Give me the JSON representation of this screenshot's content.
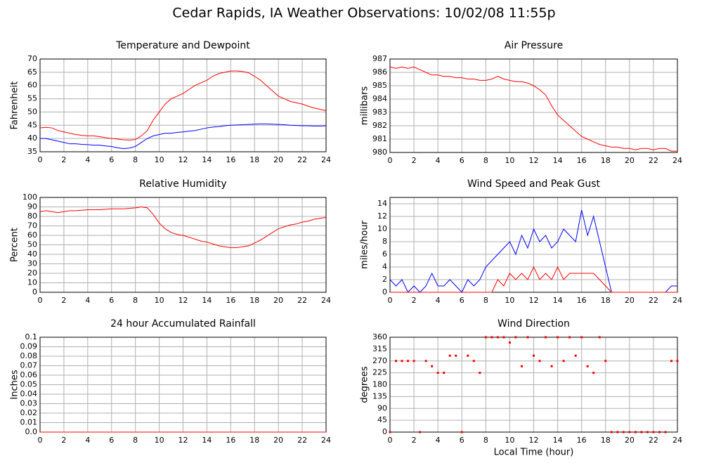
{
  "title": "Cedar Rapids, IA Weather Observations: 10/02/08 11:55p",
  "chart_data": [
    {
      "type": "line",
      "title": "Temperature and Dewpoint",
      "ylabel": "Fahrenheit",
      "x": [
        0,
        0.5,
        1,
        1.5,
        2,
        2.5,
        3,
        3.5,
        4,
        4.5,
        5,
        5.5,
        6,
        6.5,
        7,
        7.5,
        8,
        8.5,
        9,
        9.5,
        10,
        10.5,
        11,
        11.5,
        12,
        12.5,
        13,
        13.5,
        14,
        14.5,
        15,
        15.5,
        16,
        16.5,
        17,
        17.5,
        18,
        18.5,
        19,
        19.5,
        20,
        20.5,
        21,
        21.5,
        22,
        22.5,
        23,
        23.5,
        24
      ],
      "series": [
        {
          "color": "#ff0000",
          "values": [
            44,
            44.2,
            44,
            43,
            42.5,
            42,
            41.5,
            41.2,
            41,
            41,
            40.7,
            40.3,
            40,
            39.8,
            39.5,
            39.4,
            39.6,
            41,
            43,
            47,
            50,
            53,
            55,
            56,
            57,
            58.5,
            60,
            61,
            62,
            63.5,
            64.5,
            65,
            65.5,
            65.5,
            65.3,
            64.8,
            63.5,
            62,
            60,
            58,
            56,
            55,
            54,
            53.5,
            53,
            52.2,
            51.5,
            51,
            50.5
          ]
        },
        {
          "color": "#0000ff",
          "values": [
            40,
            40,
            39.5,
            39,
            38.5,
            38,
            38,
            37.8,
            37.7,
            37.5,
            37.5,
            37.2,
            37,
            36.5,
            36.2,
            36.4,
            37,
            38.5,
            40,
            41,
            41.5,
            42,
            42,
            42.3,
            42.5,
            42.8,
            43,
            43.5,
            44,
            44.3,
            44.5,
            44.8,
            45,
            45.1,
            45.2,
            45.3,
            45.4,
            45.5,
            45.5,
            45.4,
            45.3,
            45.2,
            45,
            44.9,
            44.8,
            44.8,
            44.7,
            44.7,
            44.8
          ]
        }
      ],
      "xlim": [
        0,
        24
      ],
      "xticks": [
        0,
        2,
        4,
        6,
        8,
        10,
        12,
        14,
        16,
        18,
        20,
        22,
        24
      ],
      "ylim": [
        35,
        70
      ],
      "yticks": [
        35,
        40,
        45,
        50,
        55,
        60,
        65,
        70
      ],
      "grid": true
    },
    {
      "type": "line",
      "title": "Air Pressure",
      "ylabel": "millibars",
      "x": [
        0,
        0.5,
        1,
        1.5,
        2,
        2.5,
        3,
        3.5,
        4,
        4.5,
        5,
        5.5,
        6,
        6.5,
        7,
        7.5,
        8,
        8.5,
        9,
        9.5,
        10,
        10.5,
        11,
        11.5,
        12,
        12.5,
        13,
        13.5,
        14,
        14.5,
        15,
        15.5,
        16,
        16.5,
        17,
        17.5,
        18,
        18.5,
        19,
        19.5,
        20,
        20.5,
        21,
        21.5,
        22,
        22.5,
        23,
        23.5,
        24
      ],
      "series": [
        {
          "color": "#ff0000",
          "values": [
            986.4,
            986.3,
            986.4,
            986.3,
            986.4,
            986.2,
            986.0,
            985.8,
            985.8,
            985.7,
            985.7,
            985.6,
            985.6,
            985.5,
            985.5,
            985.4,
            985.4,
            985.5,
            985.7,
            985.5,
            985.4,
            985.3,
            985.3,
            985.2,
            985.0,
            984.7,
            984.3,
            983.5,
            982.8,
            982.4,
            982.0,
            981.6,
            981.2,
            981.0,
            980.8,
            980.6,
            980.5,
            980.4,
            980.4,
            980.3,
            980.3,
            980.2,
            980.3,
            980.3,
            980.2,
            980.3,
            980.3,
            980.1,
            980.1
          ]
        }
      ],
      "xlim": [
        0,
        24
      ],
      "xticks": [
        0,
        2,
        4,
        6,
        8,
        10,
        12,
        14,
        16,
        18,
        20,
        22,
        24
      ],
      "ylim": [
        980,
        987
      ],
      "yticks": [
        980,
        981,
        982,
        983,
        984,
        985,
        986,
        987
      ],
      "grid": true
    },
    {
      "type": "line",
      "title": "Relative Humidity",
      "ylabel": "Percent",
      "x": [
        0,
        0.5,
        1,
        1.5,
        2,
        2.5,
        3,
        3.5,
        4,
        4.5,
        5,
        5.5,
        6,
        6.5,
        7,
        7.5,
        8,
        8.5,
        9,
        9.5,
        10,
        10.5,
        11,
        11.5,
        12,
        12.5,
        13,
        13.5,
        14,
        14.5,
        15,
        15.5,
        16,
        16.5,
        17,
        17.5,
        18,
        18.5,
        19,
        19.5,
        20,
        20.5,
        21,
        21.5,
        22,
        22.5,
        23,
        23.5,
        24
      ],
      "series": [
        {
          "color": "#ff0000",
          "values": [
            85,
            86,
            85,
            84,
            85,
            86,
            86,
            86.5,
            87,
            87,
            87,
            87.5,
            88,
            88,
            88,
            88.5,
            89,
            90,
            89,
            82,
            73,
            67,
            63,
            61,
            60,
            58,
            56,
            54,
            53,
            51,
            49,
            48,
            47,
            47,
            48,
            49,
            52,
            55,
            59,
            63,
            67,
            69,
            71,
            72,
            74,
            75,
            77,
            78,
            79
          ]
        }
      ],
      "xlim": [
        0,
        24
      ],
      "xticks": [
        0,
        2,
        4,
        6,
        8,
        10,
        12,
        14,
        16,
        18,
        20,
        22,
        24
      ],
      "ylim": [
        0,
        100
      ],
      "yticks": [
        0,
        10,
        20,
        30,
        40,
        50,
        60,
        70,
        80,
        90,
        100
      ],
      "grid": true
    },
    {
      "type": "line",
      "title": "Wind Speed and Peak Gust",
      "ylabel": "miles/hour",
      "x": [
        0,
        0.5,
        1,
        1.5,
        2,
        2.5,
        3,
        3.5,
        4,
        4.5,
        5,
        5.5,
        6,
        6.5,
        7,
        7.5,
        8,
        8.5,
        9,
        9.5,
        10,
        10.5,
        11,
        11.5,
        12,
        12.5,
        13,
        13.5,
        14,
        14.5,
        15,
        15.5,
        16,
        16.5,
        17,
        17.5,
        18,
        18.5,
        19,
        19.5,
        20,
        20.5,
        21,
        21.5,
        22,
        22.5,
        23,
        23.5,
        24
      ],
      "series": [
        {
          "color": "#0000ff",
          "values": [
            2,
            1,
            2,
            0,
            1,
            0,
            1,
            3,
            1,
            1,
            2,
            1,
            0,
            2,
            1,
            2,
            4,
            5,
            6,
            7,
            8,
            6,
            9,
            7,
            10,
            8,
            9,
            7,
            8,
            10,
            9,
            8,
            13,
            9,
            12,
            8,
            4,
            0,
            0,
            0,
            0,
            0,
            0,
            0,
            0,
            0,
            0,
            1,
            1
          ]
        },
        {
          "color": "#ff0000",
          "values": [
            0,
            0,
            0,
            0,
            0,
            0,
            0,
            0,
            0,
            0,
            0,
            0,
            0,
            0,
            0,
            0,
            0,
            0,
            2,
            1,
            3,
            2,
            3,
            2,
            4,
            2,
            3,
            2,
            4,
            2,
            3,
            3,
            3,
            3,
            3,
            2,
            1,
            0,
            0,
            0,
            0,
            0,
            0,
            0,
            0,
            0,
            0,
            0,
            0
          ]
        }
      ],
      "xlim": [
        0,
        24
      ],
      "xticks": [
        0,
        2,
        4,
        6,
        8,
        10,
        12,
        14,
        16,
        18,
        20,
        22,
        24
      ],
      "ylim": [
        0,
        15
      ],
      "yticks": [
        0,
        2,
        4,
        6,
        8,
        10,
        12,
        14
      ],
      "grid": true
    },
    {
      "type": "line",
      "title": "24 hour Accumulated Rainfall",
      "ylabel": "Inches",
      "x": [
        0,
        24
      ],
      "series": [
        {
          "color": "#ff0000",
          "values": [
            0,
            0
          ]
        }
      ],
      "xlim": [
        0,
        24
      ],
      "xticks": [
        0,
        2,
        4,
        6,
        8,
        10,
        12,
        14,
        16,
        18,
        20,
        22,
        24
      ],
      "ylim": [
        0,
        0.1
      ],
      "yticks": [
        {
          "value": 0,
          "label": "0.0"
        },
        0.01,
        0.02,
        0.03,
        0.04,
        0.05,
        0.06,
        0.07,
        0.08,
        0.09,
        0.1
      ],
      "grid": true
    },
    {
      "type": "scatter",
      "title": "Wind Direction",
      "ylabel": "degrees",
      "xlabel": "Local Time (hour)",
      "x": [
        0,
        0.5,
        1,
        1.5,
        2,
        2.5,
        3,
        3.5,
        4,
        4.5,
        5,
        5.5,
        6,
        6.5,
        7,
        7.5,
        8,
        8.5,
        9,
        9.5,
        10,
        10.5,
        11,
        11.5,
        12,
        12.5,
        13,
        13.5,
        14,
        14.5,
        15,
        15.5,
        16,
        16.5,
        17,
        17.5,
        18,
        18.5,
        19,
        19.5,
        20,
        20.5,
        21,
        21.5,
        22,
        22.5,
        23,
        23.5,
        24
      ],
      "series": [
        {
          "color": "#ff0000",
          "values": [
            0,
            270,
            270,
            270,
            270,
            0,
            270,
            250,
            225,
            225,
            290,
            290,
            0,
            290,
            270,
            225,
            360,
            360,
            360,
            360,
            340,
            360,
            250,
            360,
            290,
            270,
            360,
            250,
            360,
            270,
            360,
            290,
            360,
            250,
            225,
            360,
            270,
            0,
            0,
            0,
            0,
            0,
            0,
            0,
            0,
            0,
            0,
            270,
            270
          ]
        }
      ],
      "xlim": [
        0,
        24
      ],
      "xticks": [
        0,
        2,
        4,
        6,
        8,
        10,
        12,
        14,
        16,
        18,
        20,
        22,
        24
      ],
      "ylim": [
        0,
        360
      ],
      "yticks": [
        0,
        45,
        90,
        135,
        180,
        225,
        270,
        315,
        360
      ],
      "grid": true
    }
  ]
}
